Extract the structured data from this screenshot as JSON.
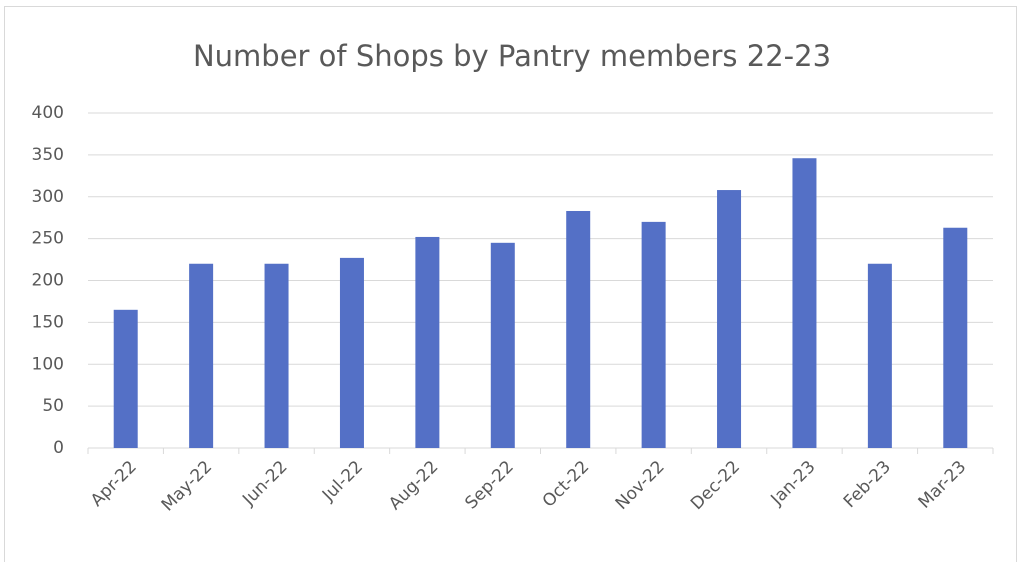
{
  "chart_data": {
    "type": "bar",
    "title": "Number of Shops by Pantry members 22-23",
    "categories": [
      "Apr-22",
      "May-22",
      "Jun-22",
      "Jul-22",
      "Aug-22",
      "Sep-22",
      "Oct-22",
      "Nov-22",
      "Dec-22",
      "Jan-23",
      "Feb-23",
      "Mar-23"
    ],
    "values": [
      165,
      220,
      220,
      227,
      252,
      245,
      283,
      270,
      308,
      346,
      220,
      263
    ],
    "color": "#5470c6",
    "ylim": [
      0,
      400
    ],
    "yticks": [
      0,
      50,
      100,
      150,
      200,
      250,
      300,
      350,
      400
    ],
    "grid": true
  }
}
